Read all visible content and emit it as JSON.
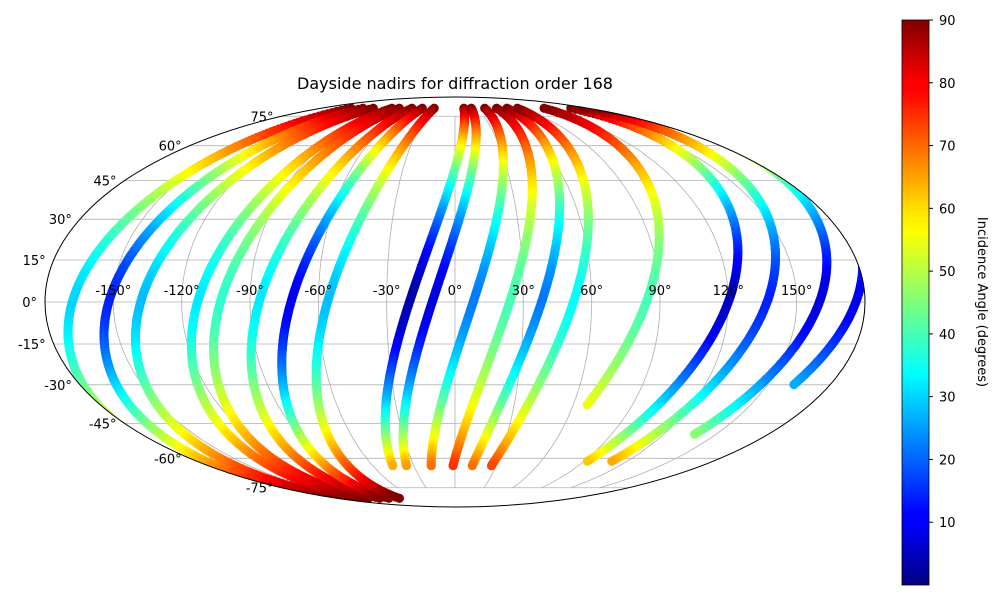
{
  "chart_data": {
    "type": "scatter",
    "projection": "mollweide",
    "title": "Dayside nadirs for diffraction order 168",
    "xlabel": "",
    "ylabel": "",
    "x_ticks": [
      -150,
      -120,
      -90,
      -60,
      -30,
      0,
      30,
      60,
      90,
      120,
      150
    ],
    "y_ticks": [
      -75,
      -60,
      -45,
      -30,
      -15,
      0,
      15,
      30,
      45,
      60,
      75
    ],
    "x_tick_labels": [
      "-150°",
      "-120°",
      "-90°",
      "-60°",
      "-30°",
      "0°",
      "30°",
      "60°",
      "90°",
      "120°",
      "150°"
    ],
    "y_tick_labels": [
      "-75°",
      "-60°",
      "-45°",
      "-30°",
      "-15°",
      "0°",
      "15°",
      "30°",
      "45°",
      "60°",
      "75°"
    ],
    "xlim": [
      -180,
      180
    ],
    "ylim": [
      -90,
      90
    ],
    "grid": true,
    "colorbar": {
      "label": "Incidence Angle (degrees)",
      "colormap": "jet",
      "range": [
        0,
        90
      ],
      "ticks": [
        10,
        20,
        30,
        40,
        50,
        60,
        70,
        80,
        90
      ],
      "tick_labels": [
        "10",
        "20",
        "30",
        "40",
        "50",
        "60",
        "70",
        "80",
        "90"
      ]
    },
    "tracks": [
      {
        "lon_equator": -168,
        "lat_start": 80,
        "lat_end": -82,
        "tilt": 0.35,
        "min_incidence": 30
      },
      {
        "lon_equator": -152,
        "lat_start": 80,
        "lat_end": -82,
        "tilt": 0.35,
        "min_incidence": 14
      },
      {
        "lon_equator": -138,
        "lat_start": 80,
        "lat_end": -82,
        "tilt": 0.35,
        "min_incidence": 28
      },
      {
        "lon_equator": -113,
        "lat_start": 80,
        "lat_end": -82,
        "tilt": 0.35,
        "min_incidence": 32
      },
      {
        "lon_equator": -103,
        "lat_start": 80,
        "lat_end": -82,
        "tilt": 0.35,
        "min_incidence": 38
      },
      {
        "lon_equator": -86,
        "lat_start": 80,
        "lat_end": -82,
        "tilt": 0.35,
        "min_incidence": 32
      },
      {
        "lon_equator": -72,
        "lat_start": 80,
        "lat_end": -82,
        "tilt": 0.35,
        "min_incidence": 10
      },
      {
        "lon_equator": -56,
        "lat_start": 80,
        "lat_end": -82,
        "tilt": 0.35,
        "min_incidence": 28
      },
      {
        "lon_equator": -20,
        "lat_start": 80,
        "lat_end": -64,
        "tilt": 0.4,
        "min_incidence": 4
      },
      {
        "lon_equator": -10,
        "lat_start": 80,
        "lat_end": -64,
        "tilt": 0.4,
        "min_incidence": 8
      },
      {
        "lon_equator": 8,
        "lat_start": 80,
        "lat_end": -64,
        "tilt": 0.4,
        "min_incidence": 22
      },
      {
        "lon_equator": 24,
        "lat_start": 80,
        "lat_end": -64,
        "tilt": 0.4,
        "min_incidence": 40
      },
      {
        "lon_equator": 38,
        "lat_start": 80,
        "lat_end": -64,
        "tilt": 0.4,
        "min_incidence": 22
      },
      {
        "lon_equator": 52,
        "lat_start": 80,
        "lat_end": -64,
        "tilt": 0.4,
        "min_incidence": 34
      },
      {
        "lon_equator": 84,
        "lat_start": 80,
        "lat_end": -38,
        "tilt": 0.45,
        "min_incidence": 40
      },
      {
        "lon_equator": 120,
        "lat_start": 80,
        "lat_end": -62,
        "tilt": 0.45,
        "min_incidence": 6
      },
      {
        "lon_equator": 137,
        "lat_start": 80,
        "lat_end": -62,
        "tilt": 0.45,
        "min_incidence": 14
      },
      {
        "lon_equator": 160,
        "lat_start": 80,
        "lat_end": -50,
        "tilt": 0.45,
        "min_incidence": 8
      },
      {
        "lon_equator": 176,
        "lat_start": 80,
        "lat_end": -30,
        "tilt": 0.45,
        "min_incidence": 10
      }
    ]
  }
}
